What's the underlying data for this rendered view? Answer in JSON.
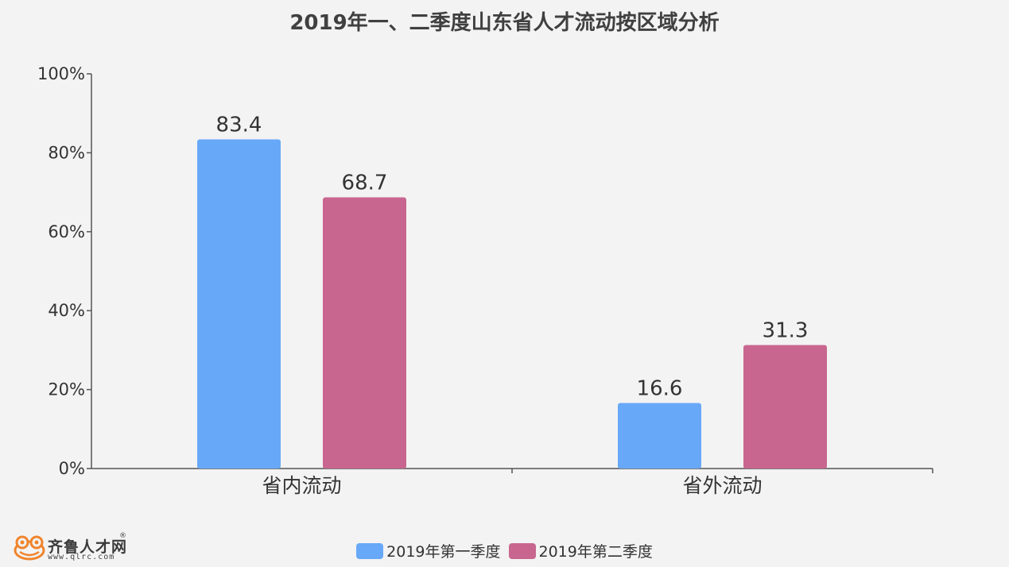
{
  "chart_data": {
    "type": "bar",
    "title": "2019年一、二季度山东省人才流动按区域分析",
    "categories": [
      "省内流动",
      "省外流动"
    ],
    "series": [
      {
        "name": "2019年第一季度",
        "values": [
          83.4,
          16.6
        ],
        "color": "#68a8f8"
      },
      {
        "name": "2019年第二季度",
        "values": [
          68.7,
          31.3
        ],
        "color": "#c8668f"
      }
    ],
    "yticks": [
      "0%",
      "20%",
      "40%",
      "60%",
      "80%",
      "100%"
    ],
    "ylim": [
      0,
      100
    ],
    "legend_position": "bottom",
    "grid": false
  },
  "logo": {
    "brand": "齐鲁人才网",
    "registered": "®",
    "url": "www.qlrc.com",
    "icon": "frog-logo-icon"
  }
}
